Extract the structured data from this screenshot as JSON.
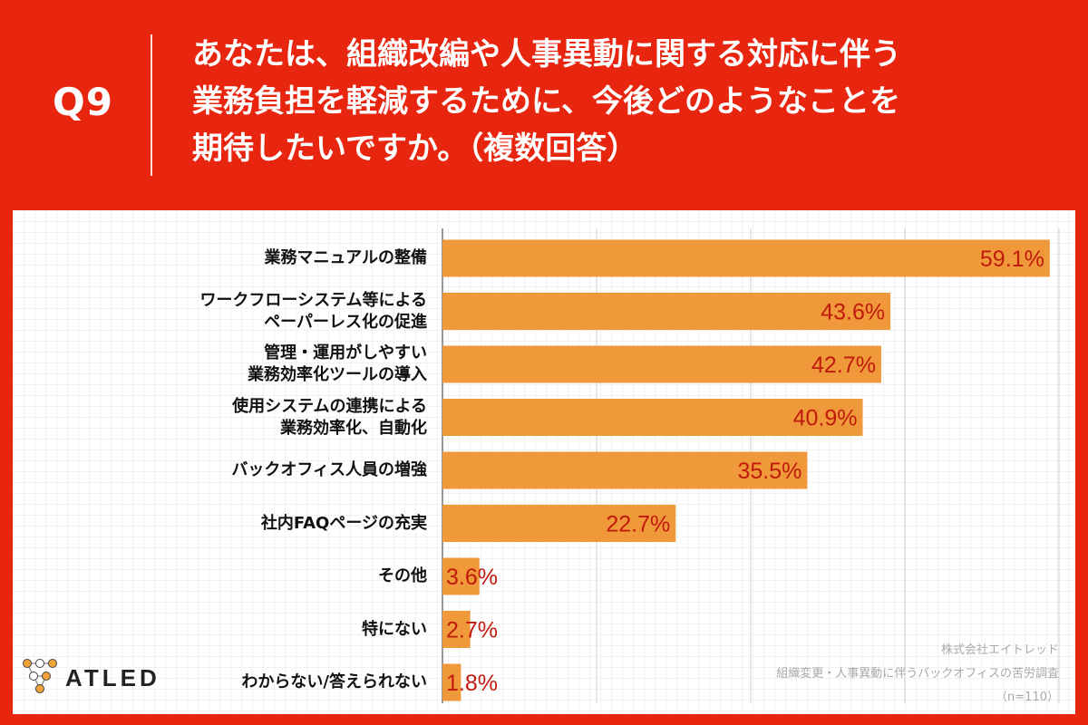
{
  "question": {
    "number": "Q9",
    "lines": [
      "あなたは、組織改編や人事異動に関する対応に伴う",
      "業務負担を軽減するために、今後どのようなことを",
      "期待したいですか。（複数回答）"
    ]
  },
  "chart_data": {
    "type": "bar",
    "orientation": "horizontal",
    "categories": [
      [
        "業務マニュアルの整備"
      ],
      [
        "ワークフローシステム等による",
        "ペーパーレス化の促進"
      ],
      [
        "管理・運用がしやすい",
        "業務効率化ツールの導入"
      ],
      [
        "使用システムの連携による",
        "業務効率化、自動化"
      ],
      [
        "バックオフィス人員の増強"
      ],
      [
        "社内FAQページの充実"
      ],
      [
        "その他"
      ],
      [
        "特にない"
      ],
      [
        "わからない/答えられない"
      ]
    ],
    "values": [
      59.1,
      43.6,
      42.7,
      40.9,
      35.5,
      22.7,
      3.6,
      2.7,
      1.8
    ],
    "value_labels": [
      "59.1%",
      "43.6%",
      "42.7%",
      "40.9%",
      "35.5%",
      "22.7%",
      "3.6%",
      "2.7%",
      "1.8%"
    ],
    "xlim": [
      0,
      60
    ],
    "gridlines_at": [
      15,
      30,
      45,
      60
    ],
    "bar_color": "#f0993a",
    "value_label_color": "#c01a0c"
  },
  "logo": {
    "text": "ATLED"
  },
  "footer": {
    "company": "株式会社エイトレッド",
    "survey": "組織変更・人事異動に伴うバックオフィスの苦労調査",
    "n": "（n=110）"
  },
  "colors": {
    "background": "#e8250f",
    "panel": "#ffffff"
  }
}
